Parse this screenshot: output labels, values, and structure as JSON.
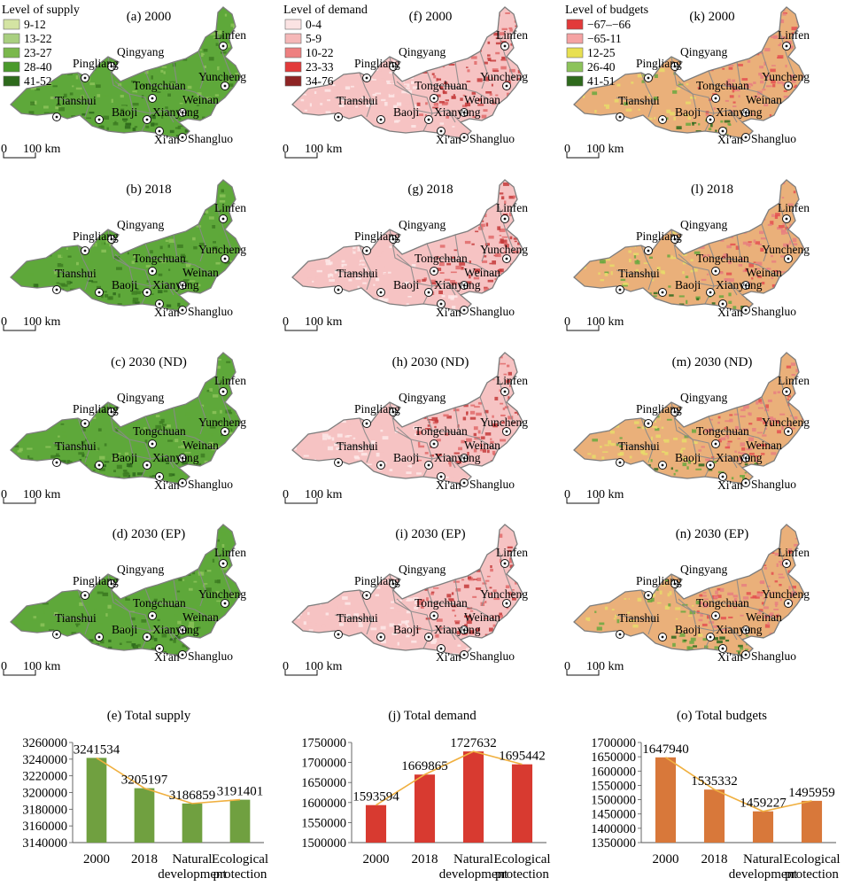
{
  "columns": [
    {
      "legend_title": "Level of supply",
      "legend_items": [
        {
          "label": "9-12",
          "color": "#d4e4a3"
        },
        {
          "label": "13-22",
          "color": "#a9cf80"
        },
        {
          "label": "23-27",
          "color": "#7ab84c"
        },
        {
          "label": "28-40",
          "color": "#4a9a2c"
        },
        {
          "label": "41-52",
          "color": "#2e6a1c"
        }
      ],
      "map_titles": [
        "(a) 2000",
        "(b) 2018",
        "(c) 2030 (ND)",
        "(d) 2030 (EP)"
      ],
      "palette": {
        "base": "#5ea83a",
        "dark": "#3d7d22",
        "light": "#8cc35a",
        "speck": "#2e6a1c"
      },
      "chart_title": "(e) Total supply"
    },
    {
      "legend_title": "Level of demand",
      "legend_items": [
        {
          "label": "0-4",
          "color": "#fbe3e3"
        },
        {
          "label": "5-9",
          "color": "#f5b8b8"
        },
        {
          "label": "10-22",
          "color": "#ee8080"
        },
        {
          "label": "23-33",
          "color": "#e23a3a"
        },
        {
          "label": "34-76",
          "color": "#8e2424"
        }
      ],
      "map_titles": [
        "(f) 2000",
        "(g) 2018",
        "(h) 2030 (ND)",
        "(i) 2030 (EP)"
      ],
      "palette": {
        "base": "#f6c3c3",
        "dark": "#e06a6a",
        "light": "#fde9e9",
        "speck": "#c43a3a"
      },
      "chart_title": "(j) Total demand"
    },
    {
      "legend_title": "Level of budgets",
      "legend_items": [
        {
          "label": "−67–−66",
          "color": "#e23a3a"
        },
        {
          "label": "−65-11",
          "color": "#f5a3a3"
        },
        {
          "label": "12-25",
          "color": "#e8e050"
        },
        {
          "label": "26-40",
          "color": "#8cc35a"
        },
        {
          "label": "41-51",
          "color": "#2e6a1c"
        }
      ],
      "map_titles": [
        "(k) 2000",
        "(l) 2018",
        "(m) 2030 (ND)",
        "(n) 2030 (EP)"
      ],
      "palette": {
        "base": "#eab07a",
        "dark": "#e88080",
        "light": "#e8dc6a",
        "speck": "#6aa840"
      },
      "chart_title": "(o) Total budgets"
    }
  ],
  "cities": [
    "Linfen",
    "Qingyang",
    "Pingliang",
    "Yuncheng",
    "Tongchuan",
    "Weinan",
    "Tianshui",
    "Baoji",
    "Xianyang",
    "Xi'an",
    "Shangluo"
  ],
  "scale_bar": {
    "zero": "0",
    "label": "100 km"
  },
  "chart_data": [
    {
      "type": "bar",
      "title": "(e) Total supply",
      "categories": [
        "2000",
        "2018",
        "Natural development",
        "Ecological protection"
      ],
      "values": [
        3241534,
        3205197,
        3186859,
        3191401
      ],
      "ylim": [
        3140000,
        3260000
      ],
      "yticks": [
        3140000,
        3160000,
        3180000,
        3200000,
        3220000,
        3240000,
        3260000
      ],
      "bar_color": "#70a040",
      "line_color": "#f0b040"
    },
    {
      "type": "bar",
      "title": "(j) Total demand",
      "categories": [
        "2000",
        "2018",
        "Natural development",
        "Ecological protection"
      ],
      "values": [
        1593594,
        1669865,
        1727632,
        1695442
      ],
      "ylim": [
        1500000,
        1750000
      ],
      "yticks": [
        1500000,
        1550000,
        1600000,
        1650000,
        1700000,
        1750000
      ],
      "bar_color": "#d83a30",
      "line_color": "#f0b040"
    },
    {
      "type": "bar",
      "title": "(o) Total budgets",
      "categories": [
        "2000",
        "2018",
        "Natural development",
        "Ecological protection"
      ],
      "values": [
        1647940,
        1535332,
        1459227,
        1495959
      ],
      "ylim": [
        1350000,
        1700000
      ],
      "yticks": [
        1350000,
        1400000,
        1450000,
        1500000,
        1550000,
        1600000,
        1650000,
        1700000
      ],
      "bar_color": "#d8783a",
      "line_color": "#f0b040"
    }
  ]
}
